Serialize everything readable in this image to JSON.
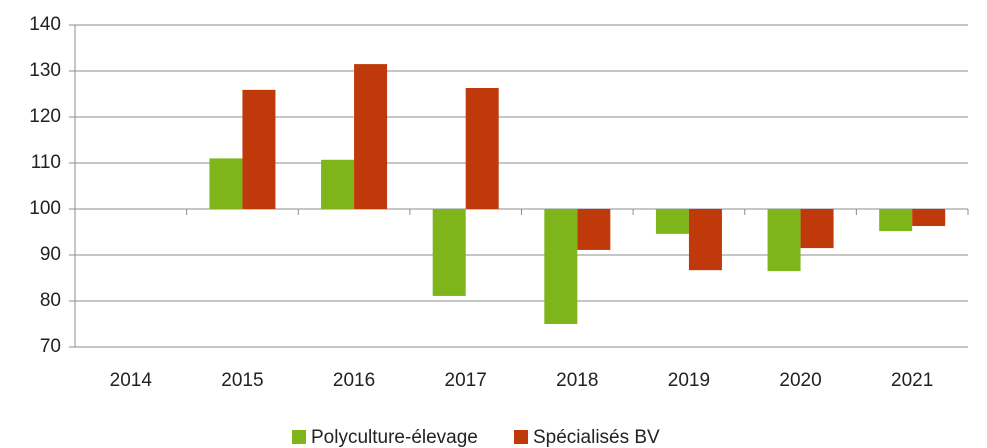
{
  "chart_data": {
    "type": "bar",
    "categories": [
      "2014",
      "2015",
      "2016",
      "2017",
      "2018",
      "2019",
      "2020",
      "2021"
    ],
    "series": [
      {
        "name": "Polyculture-élevage",
        "color": "#7db51b",
        "values": [
          100,
          111,
          110.7,
          81.1,
          75,
          94.6,
          86.5,
          95.2
        ]
      },
      {
        "name": "Spécialisés BV",
        "color": "#c0390b",
        "values": [
          100,
          125.9,
          131.5,
          126.3,
          91.1,
          86.7,
          91.5,
          96.3
        ]
      }
    ],
    "ylim": [
      70,
      140
    ],
    "yticks": [
      70,
      80,
      90,
      100,
      110,
      120,
      130,
      140
    ],
    "bar_base": 100,
    "grid": true,
    "legend": "bottom"
  }
}
